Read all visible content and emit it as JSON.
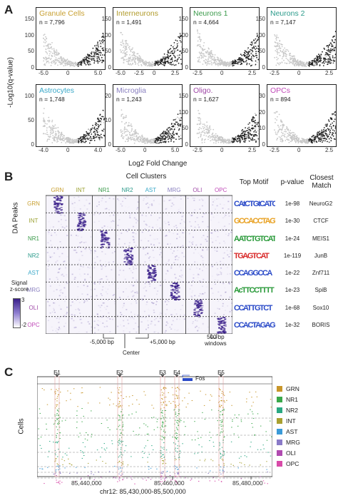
{
  "figure": {
    "panel_a": {
      "letter": "A",
      "ylabel": "-Log10(q-value)",
      "xlabel": "Log2 Fold Change",
      "plots": [
        {
          "name": "Granule Cells",
          "n": "n = 7,796",
          "color": "#c8a032",
          "xticks": [
            "-5.0",
            "0",
            "5.0"
          ],
          "yticks": [
            "150",
            "100",
            "50",
            "0"
          ],
          "dark": "right"
        },
        {
          "name": "Interneurons",
          "n": "n = 1,491",
          "color": "#b09a2a",
          "xticks": [
            "-5.0",
            "-2.5",
            "0",
            "2.5"
          ],
          "yticks": [
            "150",
            "100",
            "50",
            "0"
          ],
          "dark": "right"
        },
        {
          "name": "Neurons 1",
          "n": "n = 4,664",
          "color": "#3a9a4a",
          "xticks": [
            "-2.5",
            "0",
            "2.5"
          ],
          "yticks": [
            "150",
            "100",
            "50",
            "0"
          ],
          "dark": "right"
        },
        {
          "name": "Neurons 2",
          "n": "n = 7,147",
          "color": "#2a9a8a",
          "xticks": [
            "-2.5",
            "0",
            "2.5"
          ],
          "yticks": [
            "150",
            "100",
            "50",
            "0"
          ],
          "dark": "right"
        },
        {
          "name": "Astrocytes",
          "n": "n = 1,748",
          "color": "#3aa8c8",
          "xticks": [
            "-4.0",
            "0",
            "4.0"
          ],
          "yticks": [
            "100",
            "50",
            "0"
          ],
          "dark": "right"
        },
        {
          "name": "Microglia",
          "n": "n = 1,243",
          "color": "#8a80c0",
          "xticks": [
            "-5.0",
            "0",
            "5.0"
          ],
          "yticks": [
            "20",
            "10",
            "0"
          ],
          "dark": "right"
        },
        {
          "name": "Oligo.",
          "n": "n = 1,627",
          "color": "#a04aa8",
          "xticks": [
            "-2.5",
            "0",
            "2.5"
          ],
          "yticks": [
            "150",
            "100",
            "50",
            "0"
          ],
          "dark": "right"
        },
        {
          "name": "OPCs",
          "n": "n = 894",
          "color": "#c04ab8",
          "xticks": [
            "-2.5",
            "0",
            "2.5"
          ],
          "yticks": [
            "30",
            "20",
            "10",
            "0"
          ],
          "dark": "right"
        }
      ]
    },
    "panel_b": {
      "letter": "B",
      "title": "Cell Clusters",
      "ylabel": "DA Peaks",
      "clusters": [
        {
          "label": "GRN",
          "color": "#c8a032"
        },
        {
          "label": "INT",
          "color": "#9aa030"
        },
        {
          "label": "NR1",
          "color": "#3a9a4a"
        },
        {
          "label": "NR2",
          "color": "#2a9a8a"
        },
        {
          "label": "AST",
          "color": "#3aa8c8"
        },
        {
          "label": "MRG",
          "color": "#8a80c0"
        },
        {
          "label": "OLI",
          "color": "#a04aa8"
        },
        {
          "label": "OPC",
          "color": "#c04ab8"
        }
      ],
      "legend_title": "Signal\nz-score",
      "legend_max": "3",
      "legend_min": "-2",
      "x_annotations": [
        "-5,000 bp",
        "Center",
        "+5,000 bp"
      ],
      "window_note": "500 bp\nwindows",
      "header_motif": "Top Motif",
      "header_pvalue": "p-value",
      "header_match": "Closest\nMatch",
      "motifs": [
        {
          "seq": "CAtCTGtCATC",
          "p": "1e-98",
          "match": "NeuroG2"
        },
        {
          "seq": "GCCACCTAGTGG",
          "p": "1e-30",
          "match": "CTCF"
        },
        {
          "seq": "AATCTGTCAT",
          "p": "1e-24",
          "match": "MEIS1"
        },
        {
          "seq": "TGAGTCAT",
          "p": "1e-119",
          "match": "JunB"
        },
        {
          "seq": "CCAGGCCA",
          "p": "1e-22",
          "match": "Znf711"
        },
        {
          "seq": "AcTTCCTTTT",
          "p": "1e-23",
          "match": "SpiB"
        },
        {
          "seq": "CCATTGTCT",
          "p": "1e-68",
          "match": "Sox10"
        },
        {
          "seq": "CCACTAGAGGGC",
          "p": "1e-32",
          "match": "BORIS"
        }
      ]
    },
    "panel_c": {
      "letter": "C",
      "ylabel": "Cells",
      "gene": "Fos",
      "sites": [
        "E1",
        "E2",
        "E3",
        "E4",
        "E5"
      ],
      "xticks": [
        "85,440,000",
        "85,460,000",
        "85,480,000"
      ],
      "xlabel": "chr12: 85,430,000-85,500,000",
      "legend": [
        {
          "label": "GRN",
          "color": "#c8962a"
        },
        {
          "label": "NR1",
          "color": "#3aa84a"
        },
        {
          "label": "NR2",
          "color": "#2aa882"
        },
        {
          "label": "INT",
          "color": "#a8a030"
        },
        {
          "label": "AST",
          "color": "#3a9ad8"
        },
        {
          "label": "MRG",
          "color": "#8a7ac8"
        },
        {
          "label": "OLI",
          "color": "#b04ab0"
        },
        {
          "label": "OPC",
          "color": "#d84aa8"
        }
      ]
    }
  }
}
